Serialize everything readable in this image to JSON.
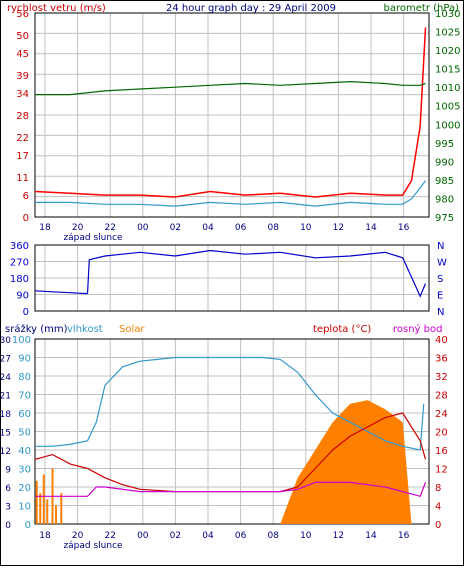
{
  "chart_data": [
    {
      "type": "line",
      "title": "24 hour graph day : 29 April 2009",
      "left_label": "rychlost vetru (m/s)",
      "right_label": "barometr (hPa)",
      "y_left": {
        "ticks": [
          0,
          6,
          11,
          17,
          22,
          28,
          34,
          39,
          45,
          50,
          56
        ],
        "range": [
          0,
          56
        ]
      },
      "y_right": {
        "ticks": [
          975,
          980,
          985,
          990,
          995,
          1000,
          1005,
          1010,
          1015,
          1020,
          1025,
          1030
        ],
        "range": [
          975,
          1030
        ]
      },
      "x_ticks": [
        "18",
        "20",
        "22",
        "00",
        "02",
        "04",
        "06",
        "08",
        "10",
        "12",
        "14",
        "16"
      ],
      "sunset_label": "západ slunce",
      "grid": true,
      "series": [
        {
          "color": "#ff0000",
          "axis": "left",
          "x": [
            0,
            2,
            4,
            6,
            8,
            10,
            12,
            14,
            16,
            18,
            20,
            21,
            21.5,
            22,
            22.3
          ],
          "values": [
            7,
            6.5,
            6,
            6,
            5.5,
            7,
            6,
            6.5,
            5.5,
            6.5,
            6,
            6,
            10,
            25,
            52
          ]
        },
        {
          "color": "#3399cc",
          "axis": "left",
          "x": [
            0,
            2,
            4,
            6,
            8,
            10,
            12,
            14,
            16,
            18,
            20,
            21,
            21.5,
            22,
            22.3
          ],
          "values": [
            4,
            4,
            3.5,
            3.5,
            3,
            4,
            3.5,
            4,
            3,
            4,
            3.5,
            3.5,
            5,
            8,
            10
          ]
        },
        {
          "color": "#006600",
          "axis": "right",
          "x": [
            0,
            2,
            4,
            6,
            8,
            10,
            12,
            14,
            16,
            18,
            20,
            21,
            22,
            22.3
          ],
          "values": [
            1008,
            1008,
            1009,
            1009.5,
            1010,
            1010.5,
            1011,
            1010.5,
            1011,
            1011.5,
            1011,
            1010.5,
            1010.5,
            1011
          ]
        }
      ]
    },
    {
      "type": "line",
      "y_left": {
        "ticks": [
          0,
          90,
          180,
          270,
          360
        ],
        "range": [
          0,
          360
        ]
      },
      "y_right_labels": [
        "N",
        "W",
        "S",
        "E",
        "N"
      ],
      "x_ticks": [
        "18",
        "20",
        "22",
        "00",
        "02",
        "04",
        "06",
        "08",
        "10",
        "12",
        "14",
        "16"
      ],
      "sunset_label": "západ slunce",
      "series": [
        {
          "color": "#0000cc",
          "x": [
            0,
            1,
            2,
            3,
            3.1,
            4,
            6,
            8,
            10,
            12,
            14,
            16,
            18,
            20,
            21,
            22,
            22.3
          ],
          "values": [
            110,
            105,
            100,
            95,
            280,
            300,
            320,
            300,
            330,
            310,
            320,
            290,
            300,
            320,
            290,
            80,
            150
          ]
        }
      ]
    },
    {
      "type": "line",
      "legend_left": [
        "srážky (mm)",
        "vlhkost",
        "Solar"
      ],
      "legend_right": [
        "teplota (°C)",
        "rosný bod"
      ],
      "y_left": {
        "ticks": [
          0,
          10,
          20,
          30,
          40,
          50,
          60,
          70,
          80,
          90,
          100
        ],
        "range": [
          0,
          100
        ]
      },
      "y_left_rain": {
        "ticks": [
          0,
          3,
          6,
          9,
          12,
          15,
          18,
          21,
          24,
          27,
          30
        ],
        "range": [
          0,
          30
        ]
      },
      "y_right": {
        "ticks": [
          0,
          4,
          8,
          12,
          16,
          20,
          24,
          28,
          32,
          36,
          40
        ],
        "range": [
          0,
          40
        ]
      },
      "x_ticks": [
        "18",
        "20",
        "22",
        "00",
        "02",
        "04",
        "06",
        "08",
        "10",
        "12",
        "14",
        "16"
      ],
      "sunset_label": "západ slunce",
      "series": [
        {
          "name": "vlhkost",
          "color": "#3399cc",
          "x": [
            0,
            1,
            2,
            3,
            3.5,
            4,
            5,
            6,
            7,
            8,
            10,
            12,
            13,
            14,
            15,
            16,
            17,
            18,
            19,
            20,
            21,
            22,
            22.2
          ],
          "values": [
            42,
            42,
            43,
            45,
            55,
            75,
            85,
            88,
            89,
            90,
            90,
            90,
            90,
            89,
            82,
            70,
            60,
            55,
            50,
            45,
            42,
            40,
            65
          ]
        },
        {
          "name": "teplota",
          "color": "#cc0000",
          "x": [
            0,
            1,
            2,
            3,
            4,
            5,
            6,
            8,
            10,
            12,
            14,
            15,
            16,
            17,
            18,
            19,
            20,
            21,
            22,
            22.3
          ],
          "values": [
            14,
            15,
            13,
            12,
            10,
            8.5,
            7.5,
            7,
            7,
            7,
            7,
            8,
            12,
            16,
            19,
            21,
            23,
            24,
            18,
            14
          ]
        },
        {
          "name": "rosný bod",
          "color": "#cc00cc",
          "x": [
            0,
            1,
            2,
            3,
            3.5,
            4,
            6,
            8,
            10,
            12,
            14,
            15,
            16,
            18,
            20,
            21,
            22,
            22.3
          ],
          "values": [
            6,
            6,
            6,
            6,
            8,
            8,
            7,
            7,
            7,
            7,
            7,
            7.5,
            9,
            9,
            8,
            7,
            6,
            9
          ]
        },
        {
          "name": "Solar",
          "color": "#ff8000",
          "x": [
            14,
            15,
            16,
            17,
            18,
            19,
            20,
            21,
            21.5
          ],
          "values": [
            0,
            25,
            40,
            55,
            65,
            67,
            62,
            55,
            0
          ]
        },
        {
          "name": "srážky",
          "color": "#ff8000",
          "x": [
            0.1,
            0.3,
            0.5,
            0.7,
            1,
            1.2,
            1.5
          ],
          "values": [
            7,
            5,
            8,
            4,
            9,
            3,
            5
          ]
        }
      ]
    }
  ]
}
